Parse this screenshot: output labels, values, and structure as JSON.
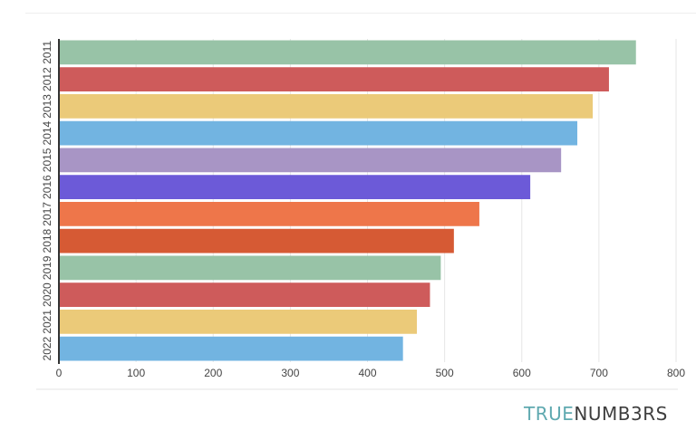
{
  "chart_data": {
    "type": "bar",
    "orientation": "horizontal",
    "categories": [
      "2011",
      "2012",
      "2013",
      "2014",
      "2015",
      "2016",
      "2017",
      "2018",
      "2019",
      "2020",
      "2021",
      "2022"
    ],
    "values": [
      748,
      713,
      692,
      672,
      651,
      611,
      545,
      512,
      495,
      481,
      464,
      446
    ],
    "colors": [
      "#98c3a7",
      "#ce5b5b",
      "#ebca79",
      "#72b4e1",
      "#a895c5",
      "#6c5ad8",
      "#ee764a",
      "#d65a34",
      "#98c3a7",
      "#ce5b5b",
      "#ebca79",
      "#72b4e1"
    ],
    "xticks": [
      0,
      100,
      200,
      300,
      400,
      500,
      600,
      700,
      800
    ],
    "xlim": [
      0,
      800
    ],
    "grid": true,
    "title": "",
    "xlabel": "",
    "ylabel": ""
  },
  "logo": {
    "part1": "TRUE",
    "part2": "NUMB3RS"
  }
}
